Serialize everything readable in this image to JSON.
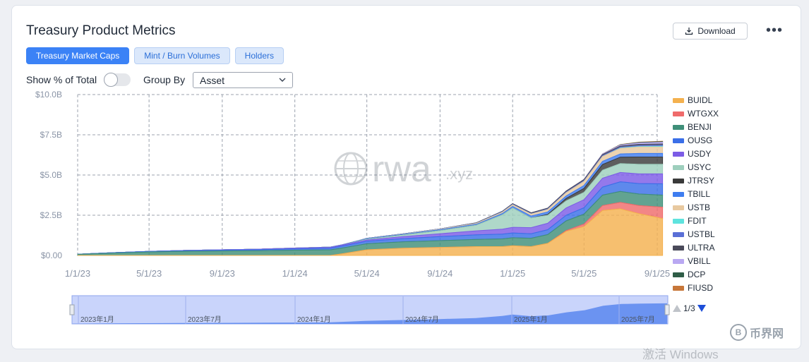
{
  "header": {
    "title": "Treasury Product Metrics",
    "download_label": "Download",
    "more_label": "•••"
  },
  "tabs": [
    {
      "label": "Treasury Market Caps",
      "active": true
    },
    {
      "label": "Mint / Burn Volumes",
      "active": false
    },
    {
      "label": "Holders",
      "active": false
    }
  ],
  "controls": {
    "show_pct_label": "Show % of Total",
    "show_pct_on": false,
    "group_by_label": "Group By",
    "group_by_value": "Asset"
  },
  "watermark": {
    "brand": "rwa",
    "suffix": ".xyz"
  },
  "pager": {
    "text": "1/3"
  },
  "corner_logo": {
    "text": "币界网",
    "symbol": "B"
  },
  "os_overlay": {
    "text": "激活 Windows"
  },
  "navigator": {
    "labels": [
      "2023年1月",
      "2023年7月",
      "2024年1月",
      "2024年7月",
      "2025年1月",
      "2025年7月"
    ]
  },
  "colors": {
    "BUIDL": "#f4b14f",
    "WTGXX": "#ef6b6b",
    "BENJI": "#3f8f79",
    "OUSG": "#3b6fe8",
    "USDY": "#7c5ce6",
    "USYC": "#9ecfbd",
    "JTRSY": "#3a3a3a",
    "TBILL": "#3e7df0",
    "USTB": "#e8c9a0",
    "FDIT": "#5ee3de",
    "USTBL": "#5a6fd6",
    "ULTRA": "#4a4a5a",
    "VBILL": "#b9a8f2",
    "DCP": "#2f5d47",
    "FIUSD": "#c7773a"
  },
  "chart_data": {
    "type": "area",
    "stacked": true,
    "title": "Treasury Product Metrics",
    "xlabel": "",
    "ylabel": "",
    "x_ticks": [
      "1/1/23",
      "5/1/23",
      "9/1/23",
      "1/1/24",
      "5/1/24",
      "9/1/24",
      "1/1/25",
      "5/1/25",
      "9/1/25"
    ],
    "y_ticks": [
      "$0.00",
      "$2.5B",
      "$5.0B",
      "$7.5B",
      "$10.0B"
    ],
    "ylim": [
      0,
      10
    ],
    "y_unit": "billion USD",
    "grid": true,
    "legend_position": "right",
    "x": [
      "2023-01-01",
      "2023-03-01",
      "2023-05-01",
      "2023-07-01",
      "2023-09-01",
      "2023-11-01",
      "2024-01-01",
      "2024-03-01",
      "2024-03-20",
      "2024-05-01",
      "2024-07-01",
      "2024-09-01",
      "2024-11-01",
      "2024-12-15",
      "2025-01-01",
      "2025-02-01",
      "2025-03-01",
      "2025-04-01",
      "2025-05-01",
      "2025-06-01",
      "2025-07-01",
      "2025-08-01",
      "2025-09-10"
    ],
    "series": [
      {
        "name": "BUIDL",
        "values": [
          0,
          0,
          0,
          0,
          0,
          0,
          0,
          0,
          0.1,
          0.35,
          0.45,
          0.5,
          0.55,
          0.55,
          0.6,
          0.55,
          0.75,
          1.5,
          1.8,
          2.8,
          2.9,
          2.6,
          2.3
        ]
      },
      {
        "name": "WTGXX",
        "values": [
          0,
          0,
          0,
          0,
          0,
          0,
          0,
          0,
          0,
          0,
          0,
          0,
          0,
          0,
          0,
          0,
          0,
          0.05,
          0.15,
          0.3,
          0.4,
          0.5,
          0.7
        ]
      },
      {
        "name": "BENJI",
        "values": [
          0.07,
          0.15,
          0.22,
          0.26,
          0.28,
          0.3,
          0.33,
          0.35,
          0.36,
          0.38,
          0.4,
          0.42,
          0.45,
          0.48,
          0.5,
          0.52,
          0.55,
          0.6,
          0.62,
          0.65,
          0.68,
          0.72,
          0.75
        ]
      },
      {
        "name": "OUSG",
        "values": [
          0.01,
          0.02,
          0.03,
          0.04,
          0.05,
          0.06,
          0.08,
          0.1,
          0.12,
          0.15,
          0.2,
          0.25,
          0.28,
          0.3,
          0.3,
          0.28,
          0.3,
          0.35,
          0.4,
          0.5,
          0.6,
          0.65,
          0.7
        ]
      },
      {
        "name": "USDY",
        "values": [
          0,
          0,
          0,
          0.01,
          0.02,
          0.03,
          0.04,
          0.05,
          0.06,
          0.08,
          0.12,
          0.18,
          0.25,
          0.3,
          0.35,
          0.38,
          0.4,
          0.45,
          0.5,
          0.55,
          0.58,
          0.6,
          0.62
        ]
      },
      {
        "name": "USYC",
        "values": [
          0,
          0,
          0,
          0,
          0,
          0,
          0,
          0,
          0,
          0.05,
          0.1,
          0.2,
          0.35,
          0.9,
          1.2,
          0.6,
          0.5,
          0.45,
          0.45,
          0.5,
          0.55,
          0.6,
          0.6
        ]
      },
      {
        "name": "JTRSY",
        "values": [
          0,
          0,
          0,
          0,
          0,
          0,
          0,
          0,
          0,
          0,
          0,
          0,
          0,
          0,
          0,
          0,
          0.05,
          0.15,
          0.25,
          0.35,
          0.4,
          0.45,
          0.45
        ]
      },
      {
        "name": "TBILL",
        "values": [
          0,
          0,
          0,
          0,
          0,
          0,
          0.01,
          0.02,
          0.02,
          0.03,
          0.04,
          0.05,
          0.06,
          0.08,
          0.1,
          0.12,
          0.15,
          0.15,
          0.18,
          0.2,
          0.2,
          0.22,
          0.22
        ]
      },
      {
        "name": "USTB",
        "values": [
          0,
          0,
          0,
          0,
          0,
          0,
          0,
          0,
          0,
          0.01,
          0.02,
          0.03,
          0.05,
          0.08,
          0.1,
          0.12,
          0.15,
          0.2,
          0.25,
          0.3,
          0.35,
          0.4,
          0.4
        ]
      },
      {
        "name": "FDIT",
        "values": [
          0,
          0,
          0,
          0,
          0,
          0,
          0,
          0,
          0,
          0,
          0,
          0,
          0,
          0,
          0,
          0,
          0,
          0,
          0,
          0,
          0.02,
          0.03,
          0.05
        ]
      },
      {
        "name": "USTBL",
        "values": [
          0,
          0,
          0,
          0,
          0,
          0,
          0,
          0,
          0,
          0.01,
          0.01,
          0.02,
          0.02,
          0.03,
          0.03,
          0.03,
          0.04,
          0.04,
          0.05,
          0.05,
          0.05,
          0.06,
          0.06
        ]
      },
      {
        "name": "ULTRA",
        "values": [
          0,
          0,
          0,
          0,
          0,
          0,
          0,
          0,
          0,
          0,
          0,
          0,
          0.02,
          0.03,
          0.04,
          0.05,
          0.05,
          0.06,
          0.06,
          0.07,
          0.07,
          0.08,
          0.08
        ]
      },
      {
        "name": "VBILL",
        "values": [
          0,
          0,
          0,
          0,
          0,
          0,
          0,
          0,
          0,
          0,
          0,
          0,
          0,
          0,
          0,
          0,
          0,
          0,
          0.02,
          0.04,
          0.06,
          0.08,
          0.1
        ]
      },
      {
        "name": "DCP",
        "values": [
          0,
          0,
          0,
          0,
          0,
          0,
          0,
          0,
          0,
          0,
          0,
          0,
          0,
          0,
          0,
          0,
          0,
          0,
          0,
          0,
          0.02,
          0.03,
          0.04
        ]
      },
      {
        "name": "FIUSD",
        "values": [
          0,
          0,
          0,
          0,
          0,
          0,
          0,
          0,
          0,
          0,
          0,
          0,
          0,
          0,
          0,
          0,
          0,
          0,
          0,
          0,
          0.01,
          0.02,
          0.03
        ]
      }
    ]
  }
}
